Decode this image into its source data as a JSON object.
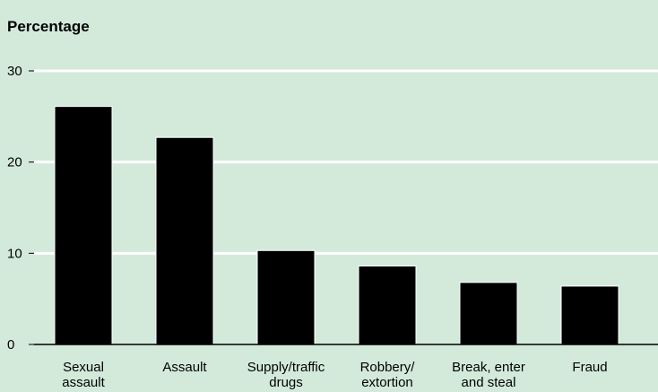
{
  "chart_data": {
    "type": "bar",
    "title": "",
    "xlabel": "",
    "ylabel": "Percentage",
    "ylim": [
      0,
      30
    ],
    "yticks": [
      0,
      10,
      20,
      30
    ],
    "grid": true,
    "legend": "none",
    "categories": [
      [
        "Sexual",
        "assault"
      ],
      [
        "Assault"
      ],
      [
        "Supply/traffic",
        "drugs"
      ],
      [
        "Robbery/",
        "extortion"
      ],
      [
        "Break, enter",
        "and steal"
      ],
      [
        "Fraud"
      ]
    ],
    "values": [
      26.1,
      22.7,
      10.3,
      8.6,
      6.8,
      6.4
    ],
    "colors": {
      "background": "#d3eadb",
      "bar": "#000000",
      "bar_edge": "#ffffff",
      "grid": "#ffffff",
      "axis": "#000000"
    }
  }
}
